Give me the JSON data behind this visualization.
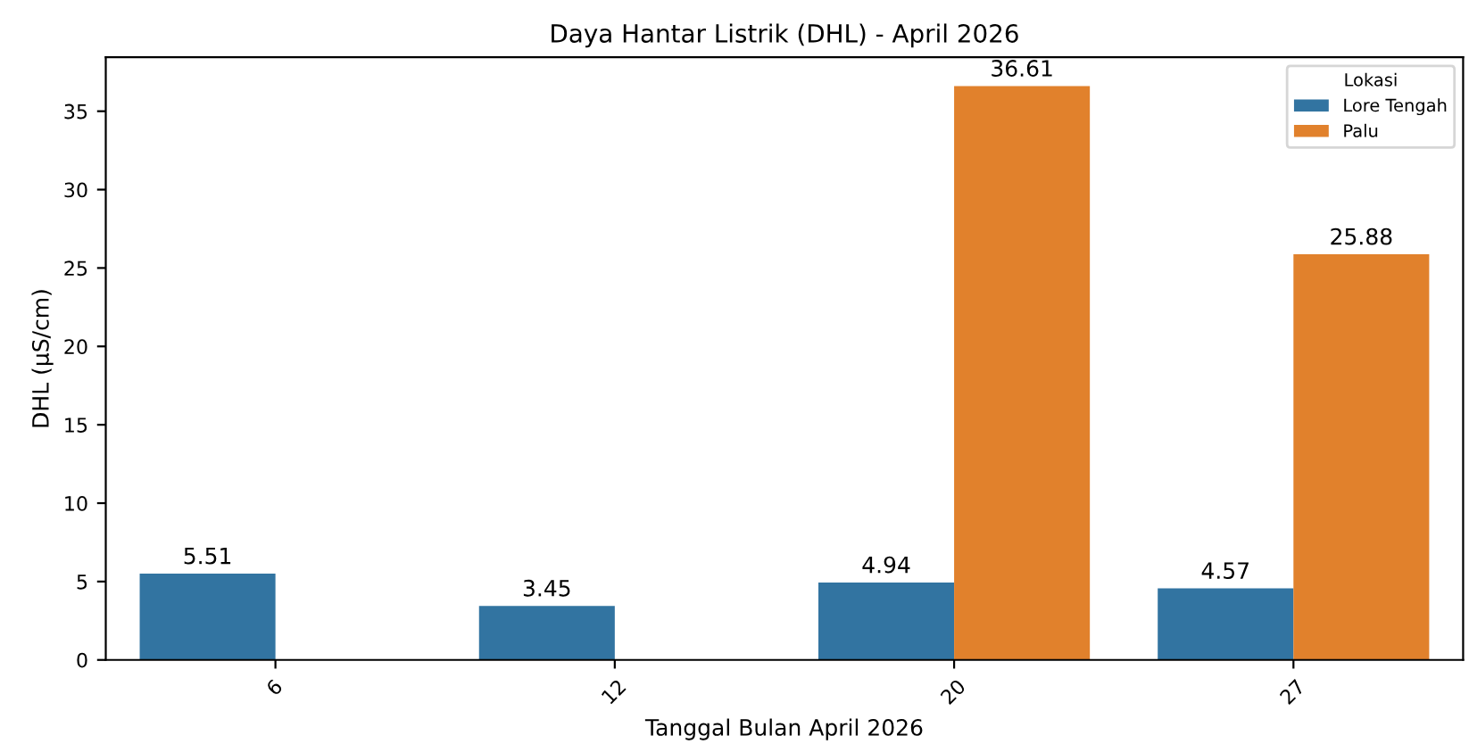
{
  "chart_data": {
    "type": "bar",
    "title": "Daya Hantar Listrik (DHL) - April 2026",
    "xlabel": "Tanggal Bulan April 2026",
    "ylabel": "DHL (µS/cm)",
    "legend_title": "Lokasi",
    "categories": [
      "6",
      "12",
      "20",
      "27"
    ],
    "series": [
      {
        "name": "Lore Tengah",
        "color": "#3274a1",
        "values": [
          5.51,
          3.45,
          4.94,
          4.57
        ]
      },
      {
        "name": "Palu",
        "color": "#e1812c",
        "values": [
          null,
          null,
          36.61,
          25.88
        ]
      }
    ],
    "ylim": [
      0,
      38.44
    ],
    "yticks": [
      0,
      5,
      10,
      15,
      20,
      25,
      30,
      35
    ],
    "data_labels": true,
    "legend": "top right",
    "grid": false
  }
}
